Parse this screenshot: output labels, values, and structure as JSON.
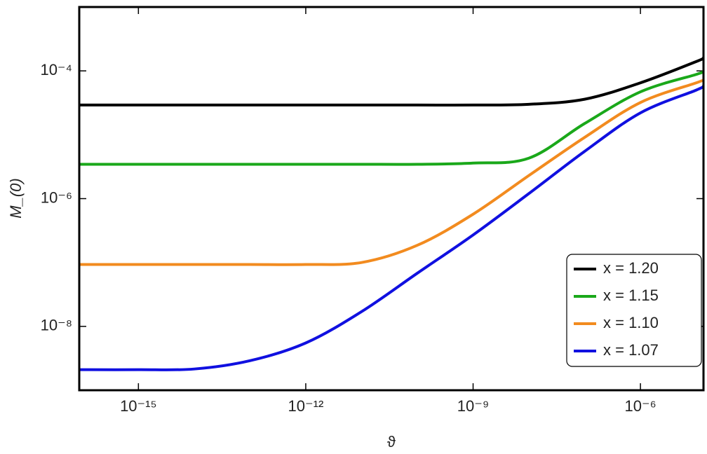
{
  "chart_data": {
    "type": "line",
    "x_label": "ϑ",
    "y_label": "M_(0)",
    "xscale": "log",
    "yscale": "log",
    "xlim": [
      8.7e-17,
      1.35e-05
    ],
    "ylim": [
      1e-09,
      0.001
    ],
    "xticks": [
      {
        "value": 1e-15,
        "label": "10⁻¹⁵"
      },
      {
        "value": 1e-12,
        "label": "10⁻¹²"
      },
      {
        "value": 1e-09,
        "label": "10⁻⁹"
      },
      {
        "value": 1e-06,
        "label": "10⁻⁶"
      }
    ],
    "yticks": [
      {
        "value": 0.0001,
        "label": "10⁻⁴"
      },
      {
        "value": 1e-06,
        "label": "10⁻⁶"
      },
      {
        "value": 1e-08,
        "label": "10⁻⁸"
      }
    ],
    "legend_position": "lower right",
    "x": [
      8.7e-17,
      1e-15,
      1e-14,
      1e-13,
      1e-12,
      1e-11,
      1e-10,
      1e-09,
      1e-08,
      1e-07,
      1e-06,
      1e-05,
      1.35e-05
    ],
    "series": [
      {
        "name": "x = 1.20",
        "color": "#000000",
        "values": [
          2.92e-05,
          2.92e-05,
          2.92e-05,
          2.92e-05,
          2.92e-05,
          2.92e-05,
          2.92e-05,
          2.92e-05,
          3e-05,
          3.6e-05,
          6.5e-05,
          0.00014,
          0.00016
        ]
      },
      {
        "name": "x = 1.15",
        "color": "#1aa81a",
        "values": [
          3.45e-06,
          3.45e-06,
          3.45e-06,
          3.45e-06,
          3.45e-06,
          3.45e-06,
          3.45e-06,
          3.6e-06,
          4.3e-06,
          1.5e-05,
          4.7e-05,
          8.8e-05,
          9.8e-05
        ]
      },
      {
        "name": "x = 1.10",
        "color": "#f28b1f",
        "values": [
          9.3e-08,
          9.3e-08,
          9.3e-08,
          9.3e-08,
          9.3e-08,
          1e-07,
          1.86e-07,
          5.7e-07,
          2.3e-06,
          9.1e-06,
          3.2e-05,
          6.5e-05,
          7.2e-05
        ]
      },
      {
        "name": "x = 1.07",
        "color": "#1010e0",
        "values": [
          2.1e-09,
          2.1e-09,
          2.15e-09,
          2.9e-09,
          5.5e-09,
          1.7e-08,
          6.8e-08,
          2.7e-07,
          1.2e-06,
          5.5e-06,
          2.2e-05,
          5e-05,
          5.8e-05
        ]
      }
    ]
  }
}
